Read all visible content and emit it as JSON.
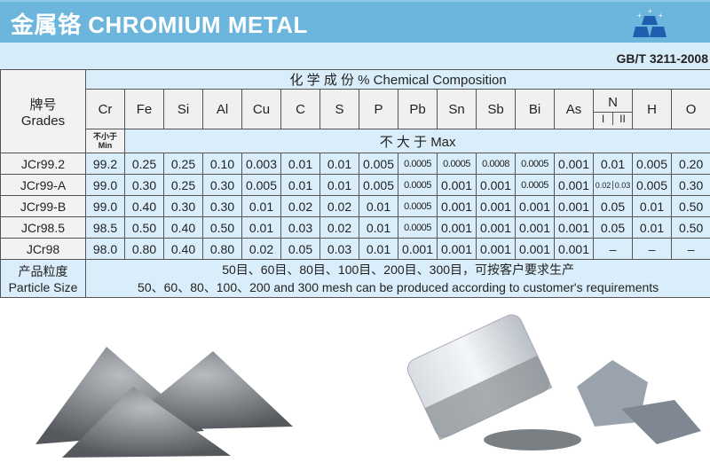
{
  "header": {
    "title": "金属铬 CHROMIUM METAL",
    "logo_icon": "metal-ingots-icon",
    "standard": "GB/T 3211-2008"
  },
  "colors": {
    "banner": "#6cb6de",
    "cell": "#d9eefa"
  },
  "table": {
    "grade_header": [
      "牌号",
      "Grades"
    ],
    "composition_header": "化 学 成 份 %  Chemical Composition",
    "elements": [
      "Cr",
      "Fe",
      "Si",
      "Al",
      "Cu",
      "C",
      "S",
      "P",
      "Pb",
      "Sn",
      "Sb",
      "Bi",
      "As",
      "N",
      "H",
      "O"
    ],
    "n_sub": [
      "I",
      "II"
    ],
    "min_label": [
      "不小于",
      "Min"
    ],
    "max_label": "不 大 于 Max",
    "rows": [
      {
        "grade": "JCr99.2",
        "values": [
          "99.2",
          "0.25",
          "0.25",
          "0.10",
          "0.003",
          "0.01",
          "0.01",
          "0.005",
          "0.0005",
          "0.0005",
          "0.0008",
          "0.0005",
          "0.001",
          "0.01",
          "0.005",
          "0.20"
        ]
      },
      {
        "grade": "JCr99-A",
        "values": [
          "99.0",
          "0.30",
          "0.25",
          "0.30",
          "0.005",
          "0.01",
          "0.01",
          "0.005",
          "0.0005",
          "0.001",
          "0.001",
          "0.0005",
          "0.001",
          [
            "0.02",
            "0.03"
          ],
          "0.005",
          "0.30"
        ]
      },
      {
        "grade": "JCr99-B",
        "values": [
          "99.0",
          "0.40",
          "0.30",
          "0.30",
          "0.01",
          "0.02",
          "0.02",
          "0.01",
          "0.0005",
          "0.001",
          "0.001",
          "0.001",
          "0.001",
          "0.05",
          "0.01",
          "0.50"
        ]
      },
      {
        "grade": "JCr98.5",
        "values": [
          "98.5",
          "0.50",
          "0.40",
          "0.50",
          "0.01",
          "0.03",
          "0.02",
          "0.01",
          "0.0005",
          "0.001",
          "0.001",
          "0.001",
          "0.001",
          "0.05",
          "0.01",
          "0.50"
        ]
      },
      {
        "grade": "JCr98",
        "values": [
          "98.0",
          "0.80",
          "0.40",
          "0.80",
          "0.02",
          "0.05",
          "0.03",
          "0.01",
          "0.001",
          "0.001",
          "0.001",
          "0.001",
          "0.001",
          "–",
          "–",
          "–"
        ]
      }
    ],
    "particle": {
      "label": [
        "产品粒度",
        "Particle Size"
      ],
      "text_cn": "50目、60目、80目、100目、200目、300目，可按客户要求生产",
      "text_en": "50、60、80、100、200 and 300 mesh can be produced according to customer's requirements"
    }
  }
}
